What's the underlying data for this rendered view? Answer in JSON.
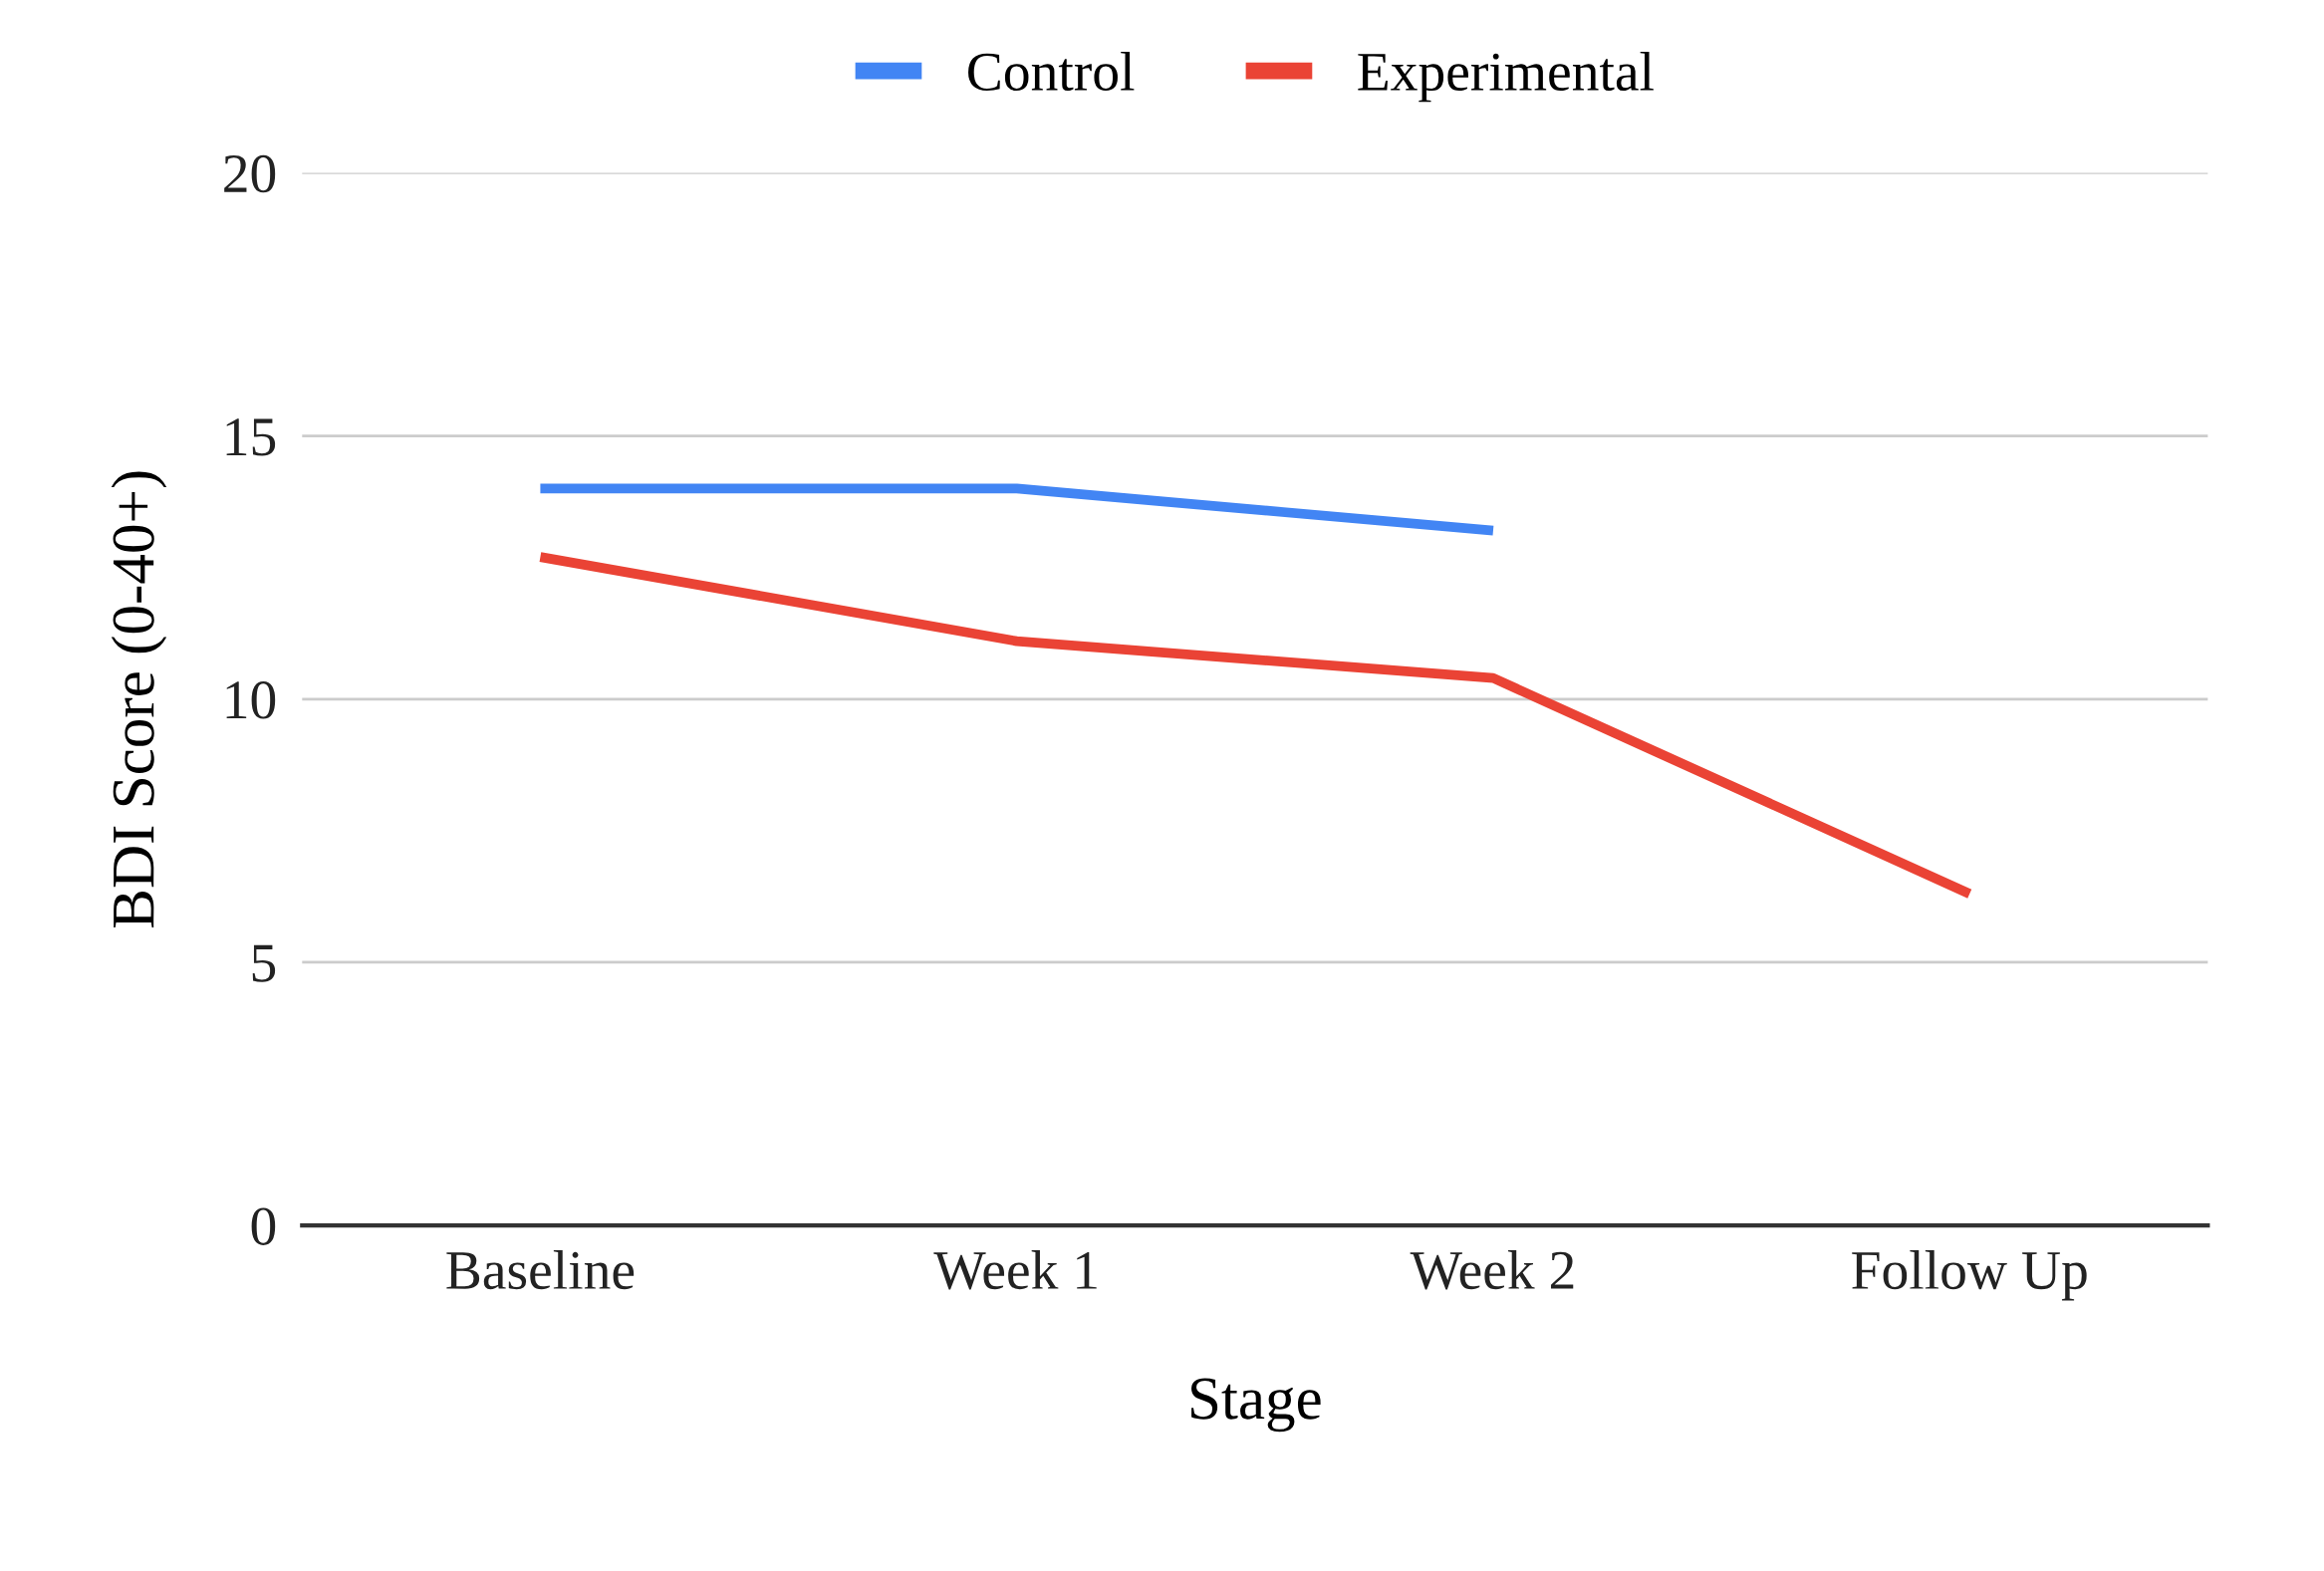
{
  "chart_data": {
    "type": "line",
    "xlabel": "Stage",
    "ylabel": "BDI Score (0-40+)",
    "categories": [
      "Baseline",
      "Week 1",
      "Week 2",
      "Follow Up"
    ],
    "series": [
      {
        "name": "Control",
        "color": "#4285f4",
        "values": [
          14.0,
          14.0,
          13.2,
          null
        ]
      },
      {
        "name": "Experimental",
        "color": "#ea4335",
        "values": [
          12.7,
          11.1,
          10.4,
          6.3
        ]
      }
    ],
    "ylim": [
      0,
      20
    ],
    "yticks": [
      0,
      5,
      10,
      15,
      20
    ],
    "grid": "y",
    "legend": "top",
    "marker": "none",
    "line_style": "solid"
  }
}
